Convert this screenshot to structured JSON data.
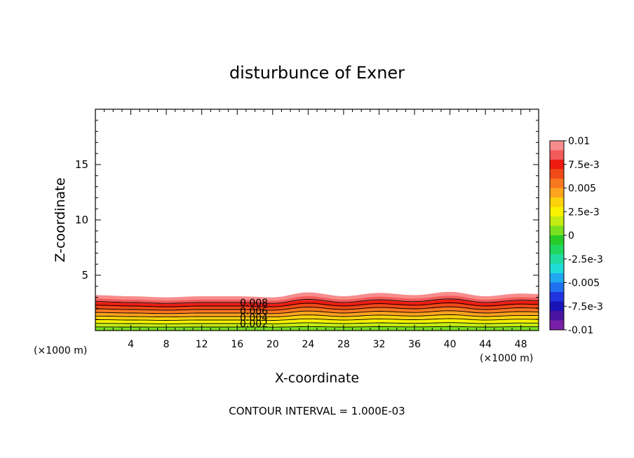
{
  "chart_data": {
    "type": "contour",
    "title": "disturbunce of Exner",
    "xlabel": "X-coordinate",
    "ylabel": "Z-coordinate",
    "x_unit_label": "(×1000 m)",
    "y_unit_label": "(×1000 m)",
    "xlim": [
      0,
      50
    ],
    "ylim": [
      0,
      20
    ],
    "x_ticks": [
      4,
      8,
      12,
      16,
      20,
      24,
      28,
      32,
      36,
      40,
      44,
      48
    ],
    "y_ticks": [
      5,
      10,
      15
    ],
    "footer": "CONTOUR INTERVAL = 1.000E-03",
    "contour_interval": 0.001,
    "contour_labels": [
      "0.008",
      "0.006",
      "0.004",
      "0.002"
    ],
    "colorbar": {
      "levels": [
        -0.01,
        -0.0075,
        -0.005,
        -0.0025,
        0,
        0.0025,
        0.005,
        0.0075,
        0.01
      ],
      "tick_labels": [
        "0.01",
        "7.5e-3",
        "0.005",
        "2.5e-3",
        "0",
        "-2.5e-3",
        "-0.005",
        "-7.5e-3",
        "-0.01"
      ],
      "colors_top_to_bottom": [
        "#f88c8c",
        "#f25a5a",
        "#ee1c10",
        "#f04a18",
        "#f87820",
        "#fca41e",
        "#fcd20a",
        "#f8f200",
        "#c4ec14",
        "#7ae020",
        "#28cc28",
        "#20d860",
        "#20dca0",
        "#20dcd8",
        "#20a8f0",
        "#2070f0",
        "#2034e0",
        "#1a14b8",
        "#4a14a0",
        "#7a20a8"
      ]
    },
    "boundary_height_profile": {
      "x": [
        0,
        4,
        8,
        12,
        16,
        20,
        24,
        28,
        32,
        36,
        40,
        44,
        48,
        50
      ],
      "z": [
        3.2,
        3.1,
        3.0,
        3.1,
        3.1,
        3.0,
        3.45,
        3.1,
        3.4,
        3.2,
        3.5,
        3.1,
        3.35,
        3.3
      ]
    }
  }
}
